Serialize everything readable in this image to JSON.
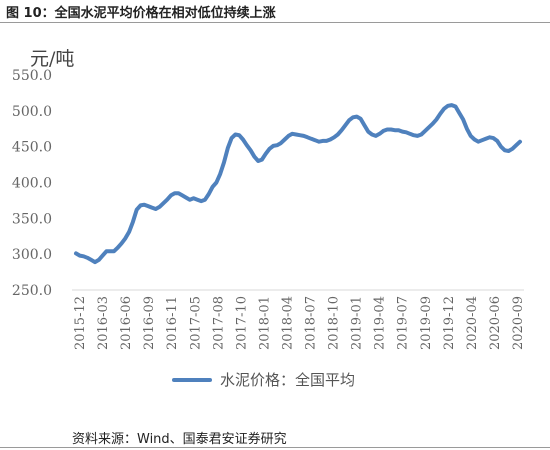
{
  "figure": {
    "title": "图 10：全国水泥平均价格在相对低位持续上涨",
    "source": "资料来源：Wind、国泰君安证券研究"
  },
  "chart_data": {
    "type": "line",
    "ylabel": "元/吨",
    "ylim": [
      250,
      550
    ],
    "yticks": [
      "250.0",
      "300.0",
      "350.0",
      "400.0",
      "450.0",
      "500.0",
      "550.0"
    ],
    "grid": false,
    "legend_position": "bottom",
    "x_tick_labels": [
      "2015-12",
      "2016-03",
      "2016-06",
      "2016-09",
      "2016-11",
      "2017-05",
      "2017-08",
      "2017-10",
      "2018-01",
      "2018-04",
      "2018-07",
      "2018-10",
      "2019-01",
      "2019-04",
      "2019-07",
      "2019-09",
      "2019-12",
      "2020-04",
      "2020-06",
      "2020-09"
    ],
    "series": [
      {
        "name": "水泥价格：全国平均",
        "color": "#4f81bd",
        "values": [
          301,
          298,
          297,
          295,
          292,
          289,
          292,
          298,
          304,
          304,
          304,
          309,
          315,
          322,
          331,
          345,
          362,
          368,
          369,
          367,
          365,
          363,
          366,
          371,
          376,
          382,
          385,
          385,
          382,
          379,
          376,
          378,
          376,
          374,
          376,
          384,
          394,
          400,
          412,
          428,
          448,
          462,
          467,
          466,
          460,
          452,
          445,
          436,
          430,
          432,
          440,
          447,
          451,
          452,
          455,
          460,
          465,
          468,
          467,
          466,
          465,
          463,
          461,
          459,
          457,
          458,
          458,
          460,
          463,
          467,
          473,
          480,
          487,
          491,
          492,
          489,
          480,
          471,
          467,
          465,
          468,
          472,
          474,
          474,
          473,
          473,
          471,
          470,
          468,
          466,
          465,
          467,
          472,
          477,
          482,
          488,
          496,
          503,
          507,
          508,
          506,
          497,
          488,
          475,
          465,
          460,
          457,
          459,
          461,
          463,
          462,
          458,
          450,
          445,
          444,
          447,
          452,
          457
        ]
      }
    ]
  }
}
